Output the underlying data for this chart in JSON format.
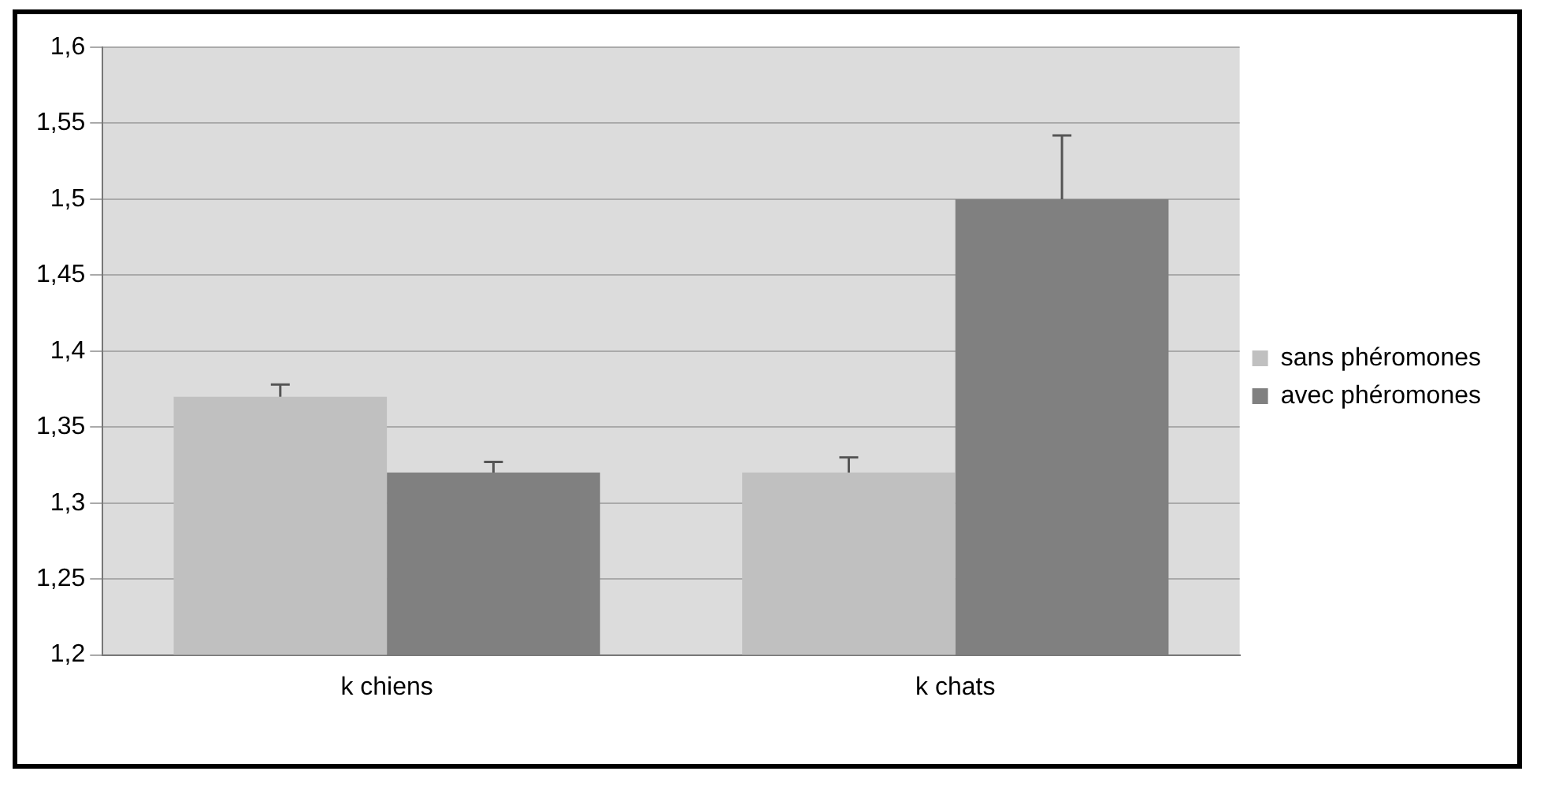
{
  "chart_data": {
    "type": "bar",
    "categories": [
      "k chiens",
      "k chats"
    ],
    "series": [
      {
        "name": "sans phéromones",
        "color": "#c0c0c0",
        "values": [
          1.37,
          1.32
        ],
        "errors": [
          [
            1.37,
            1.378
          ],
          [
            1.32,
            1.33
          ]
        ]
      },
      {
        "name": "avec phéromones",
        "color": "#808080",
        "values": [
          1.32,
          1.5
        ],
        "errors": [
          [
            1.32,
            1.327
          ],
          [
            1.5,
            1.542
          ]
        ]
      }
    ],
    "ylim": [
      1.2,
      1.6
    ],
    "yticks": [
      {
        "value": 1.2,
        "label": "1,2"
      },
      {
        "value": 1.25,
        "label": "1,25"
      },
      {
        "value": 1.3,
        "label": "1,3"
      },
      {
        "value": 1.35,
        "label": "1,35"
      },
      {
        "value": 1.4,
        "label": "1,4"
      },
      {
        "value": 1.45,
        "label": "1,45"
      },
      {
        "value": 1.5,
        "label": "1,5"
      },
      {
        "value": 1.55,
        "label": "1,55"
      },
      {
        "value": 1.6,
        "label": "1,6"
      }
    ],
    "grid": "y",
    "legend": "right"
  }
}
